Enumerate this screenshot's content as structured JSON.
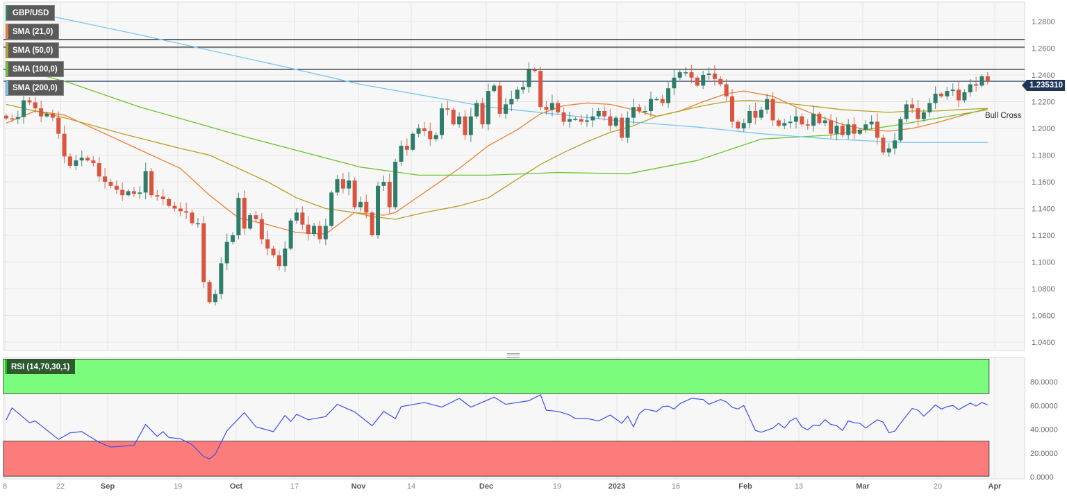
{
  "legend": {
    "symbol": "GBP/USD",
    "sma21": "SMA (21,0)",
    "sma50": "SMA (50,0)",
    "sma100": "SMA (100,0)",
    "sma200": "SMA (200,0)",
    "rsi": "RSI (14,70,30,1)"
  },
  "colors": {
    "up": "#2e7d6b",
    "down": "#d9553f",
    "sma21": "#f07c2a",
    "sma50": "#b5a024",
    "sma100": "#6ac42a",
    "sma200": "#78c4f2",
    "rsi_line": "#3b4cf0",
    "overbought_zone": "#7cfc7c",
    "oversold_zone": "#fc7c7c",
    "price_tag": "#1d3557"
  },
  "price_tag": "1.235310",
  "annotation": "Bull Cross",
  "chart_data": [
    {
      "type": "candlestick",
      "title": "GBP/USD",
      "ylim": [
        1.035,
        1.295
      ],
      "grid": true,
      "y_ticks": [
        "1.2800",
        "1.2600",
        "1.2400",
        "1.2200",
        "1.2000",
        "1.1800",
        "1.1600",
        "1.1400",
        "1.1200",
        "1.1000",
        "1.0800",
        "1.0600",
        "1.0400"
      ],
      "x_ticks": [
        "8",
        "22",
        "Sep",
        "19",
        "Oct",
        "17",
        "Nov",
        "14",
        "Dec",
        "19",
        "2023",
        "16",
        "Feb",
        "13",
        "Mar",
        "20",
        "Apr"
      ],
      "closes": [
        1.2075,
        1.207,
        1.2085,
        1.221,
        1.2195,
        1.215,
        1.209,
        1.211,
        1.208,
        1.196,
        1.179,
        1.172,
        1.176,
        1.178,
        1.176,
        1.174,
        1.164,
        1.16,
        1.157,
        1.154,
        1.15,
        1.153,
        1.151,
        1.152,
        1.168,
        1.15,
        1.149,
        1.147,
        1.142,
        1.14,
        1.138,
        1.137,
        1.129,
        1.129,
        1.085,
        1.07,
        1.076,
        1.099,
        1.115,
        1.12,
        1.148,
        1.125,
        1.135,
        1.132,
        1.117,
        1.11,
        1.105,
        1.097,
        1.11,
        1.131,
        1.137,
        1.128,
        1.121,
        1.127,
        1.117,
        1.127,
        1.152,
        1.162,
        1.155,
        1.161,
        1.141,
        1.145,
        1.137,
        1.12,
        1.157,
        1.16,
        1.141,
        1.175,
        1.187,
        1.184,
        1.196,
        1.2,
        1.198,
        1.192,
        1.195,
        1.215,
        1.214,
        1.203,
        1.209,
        1.195,
        1.209,
        1.219,
        1.203,
        1.228,
        1.232,
        1.211,
        1.218,
        1.222,
        1.229,
        1.231,
        1.244,
        1.243,
        1.216,
        1.214,
        1.219,
        1.212,
        1.205,
        1.207,
        1.207,
        1.205,
        1.206,
        1.209,
        1.213,
        1.209,
        1.202,
        1.208,
        1.193,
        1.208,
        1.216,
        1.213,
        1.213,
        1.222,
        1.222,
        1.219,
        1.23,
        1.238,
        1.242,
        1.242,
        1.238,
        1.232,
        1.24,
        1.241,
        1.237,
        1.233,
        1.224,
        1.205,
        1.2,
        1.204,
        1.213,
        1.208,
        1.214,
        1.222,
        1.206,
        1.202,
        1.204,
        1.205,
        1.209,
        1.203,
        1.202,
        1.211,
        1.204,
        1.206,
        1.196,
        1.202,
        1.195,
        1.203,
        1.196,
        1.199,
        1.203,
        1.205,
        1.193,
        1.182,
        1.185,
        1.191,
        1.207,
        1.218,
        1.215,
        1.207,
        1.212,
        1.219,
        1.226,
        1.224,
        1.228,
        1.229,
        1.221,
        1.227,
        1.233,
        1.232,
        1.239,
        1.2353
      ],
      "horizontal_levels": [
        1.2665,
        1.2608,
        1.2442,
        1.2353
      ],
      "series": [
        {
          "name": "SMA (21,0)",
          "points": [
            [
              0,
              1.204
            ],
            [
              5,
              1.213
            ],
            [
              10,
              1.21
            ],
            [
              20,
              1.19
            ],
            [
              30,
              1.17
            ],
            [
              35,
              1.15
            ],
            [
              40,
              1.133
            ],
            [
              45,
              1.128
            ],
            [
              50,
              1.122
            ],
            [
              55,
              1.121
            ],
            [
              60,
              1.137
            ],
            [
              65,
              1.135
            ],
            [
              67,
              1.137
            ],
            [
              72,
              1.152
            ],
            [
              78,
              1.17
            ],
            [
              83,
              1.187
            ],
            [
              88,
              1.199
            ],
            [
              92,
              1.211
            ],
            [
              96,
              1.217
            ],
            [
              100,
              1.219
            ],
            [
              104,
              1.218
            ],
            [
              108,
              1.214
            ],
            [
              112,
              1.209
            ],
            [
              116,
              1.213
            ],
            [
              120,
              1.22
            ],
            [
              124,
              1.226
            ],
            [
              127,
              1.228
            ],
            [
              132,
              1.224
            ],
            [
              136,
              1.216
            ],
            [
              140,
              1.209
            ],
            [
              144,
              1.203
            ],
            [
              148,
              1.199
            ],
            [
              152,
              1.198
            ],
            [
              156,
              1.2
            ],
            [
              160,
              1.204
            ],
            [
              164,
              1.209
            ],
            [
              169,
              1.215
            ]
          ]
        },
        {
          "name": "SMA (50,0)",
          "points": [
            [
              0,
              1.218
            ],
            [
              10,
              1.208
            ],
            [
              20,
              1.196
            ],
            [
              30,
              1.185
            ],
            [
              35,
              1.18
            ],
            [
              40,
              1.17
            ],
            [
              45,
              1.16
            ],
            [
              50,
              1.148
            ],
            [
              55,
              1.14
            ],
            [
              60,
              1.137
            ],
            [
              63,
              1.134
            ],
            [
              67,
              1.132
            ],
            [
              72,
              1.137
            ],
            [
              78,
              1.142
            ],
            [
              83,
              1.148
            ],
            [
              88,
              1.162
            ],
            [
              92,
              1.173
            ],
            [
              96,
              1.182
            ],
            [
              100,
              1.19
            ],
            [
              104,
              1.197
            ],
            [
              108,
              1.202
            ],
            [
              112,
              1.209
            ],
            [
              116,
              1.213
            ],
            [
              120,
              1.217
            ],
            [
              124,
              1.22
            ],
            [
              128,
              1.221
            ],
            [
              132,
              1.22
            ],
            [
              136,
              1.218
            ],
            [
              140,
              1.216
            ],
            [
              144,
              1.214
            ],
            [
              148,
              1.213
            ],
            [
              152,
              1.212
            ],
            [
              156,
              1.213
            ],
            [
              160,
              1.213
            ],
            [
              164,
              1.214
            ],
            [
              169,
              1.215
            ]
          ]
        },
        {
          "name": "SMA (100,0)",
          "points": [
            [
              0,
              1.247
            ],
            [
              11,
              1.234
            ],
            [
              23,
              1.216
            ],
            [
              40,
              1.195
            ],
            [
              61,
              1.171
            ],
            [
              71,
              1.165
            ],
            [
              83,
              1.165
            ],
            [
              95,
              1.167
            ],
            [
              107,
              1.166
            ],
            [
              119,
              1.176
            ],
            [
              130,
              1.192
            ],
            [
              142,
              1.195
            ],
            [
              154,
              1.203
            ],
            [
              169,
              1.214
            ]
          ]
        },
        {
          "name": "SMA (200,0)",
          "points": [
            [
              0,
              1.291
            ],
            [
              23,
              1.27
            ],
            [
              47,
              1.247
            ],
            [
              61,
              1.233
            ],
            [
              83,
              1.216
            ],
            [
              107,
              1.205
            ],
            [
              119,
              1.201
            ],
            [
              130,
              1.196
            ],
            [
              142,
              1.192
            ],
            [
              154,
              1.1895
            ],
            [
              169,
              1.1895
            ]
          ]
        }
      ]
    },
    {
      "type": "line",
      "title": "RSI (14,70,30,1)",
      "ylim": [
        0,
        100
      ],
      "y_ticks": [
        "80.0000",
        "60.0000",
        "40.0000",
        "20.0000",
        "0.0000"
      ],
      "overbought": 70,
      "oversold": 30,
      "points": [
        [
          0,
          48
        ],
        [
          1,
          58
        ],
        [
          4,
          45.5
        ],
        [
          5,
          47
        ],
        [
          9,
          31.5
        ],
        [
          11,
          37
        ],
        [
          13,
          38
        ],
        [
          16,
          29
        ],
        [
          18,
          25
        ],
        [
          22,
          26.5
        ],
        [
          24,
          44
        ],
        [
          26,
          34
        ],
        [
          27,
          38
        ],
        [
          28,
          33
        ],
        [
          30,
          32
        ],
        [
          32,
          27
        ],
        [
          34,
          17
        ],
        [
          35,
          15
        ],
        [
          36,
          19
        ],
        [
          38,
          38.7
        ],
        [
          41,
          54
        ],
        [
          43,
          42
        ],
        [
          46,
          38
        ],
        [
          48,
          51.6
        ],
        [
          49,
          46.6
        ],
        [
          50,
          52.6
        ],
        [
          52,
          48
        ],
        [
          55,
          50.6
        ],
        [
          57,
          61
        ],
        [
          60,
          54.6
        ],
        [
          63,
          43
        ],
        [
          65,
          55
        ],
        [
          67,
          49
        ],
        [
          68,
          59
        ],
        [
          72,
          62.5
        ],
        [
          75,
          58.6
        ],
        [
          78,
          66
        ],
        [
          80,
          58.6
        ],
        [
          84,
          67
        ],
        [
          86,
          61
        ],
        [
          90,
          64
        ],
        [
          92,
          69
        ],
        [
          93,
          56
        ],
        [
          95,
          55
        ],
        [
          97,
          52
        ],
        [
          98,
          49
        ],
        [
          100,
          49
        ],
        [
          102,
          47
        ],
        [
          104,
          52
        ],
        [
          106,
          45
        ],
        [
          107,
          51
        ],
        [
          108,
          42
        ],
        [
          109,
          53
        ],
        [
          110,
          57
        ],
        [
          112,
          55
        ],
        [
          113,
          59
        ],
        [
          114,
          59.5
        ],
        [
          115,
          57
        ],
        [
          116,
          61.5
        ],
        [
          118,
          66
        ],
        [
          120,
          65
        ],
        [
          121,
          61
        ],
        [
          123,
          65
        ],
        [
          124,
          63
        ],
        [
          125,
          58.5
        ],
        [
          126,
          57
        ],
        [
          127,
          60
        ],
        [
          129,
          39
        ],
        [
          130,
          37.5
        ],
        [
          132,
          41
        ],
        [
          133,
          45
        ],
        [
          134,
          41
        ],
        [
          135,
          47
        ],
        [
          136,
          49.5
        ],
        [
          137,
          42
        ],
        [
          138,
          39.5
        ],
        [
          139,
          43.5
        ],
        [
          140,
          43
        ],
        [
          141,
          48
        ],
        [
          142,
          44
        ],
        [
          143,
          43
        ],
        [
          144,
          39
        ],
        [
          145,
          47
        ],
        [
          146,
          45.5
        ],
        [
          147,
          45
        ],
        [
          148,
          41
        ],
        [
          150,
          48
        ],
        [
          151,
          46
        ],
        [
          152,
          37
        ],
        [
          153,
          38.5
        ],
        [
          154,
          45
        ],
        [
          156,
          57.5
        ],
        [
          157,
          56
        ],
        [
          158,
          51
        ],
        [
          159,
          55.5
        ],
        [
          160,
          60.5
        ],
        [
          161,
          57
        ],
        [
          162,
          59
        ],
        [
          163,
          60
        ],
        [
          164,
          56.5
        ],
        [
          166,
          62
        ],
        [
          167,
          59.5
        ],
        [
          168,
          62.5
        ],
        [
          169,
          60.5
        ]
      ]
    }
  ]
}
